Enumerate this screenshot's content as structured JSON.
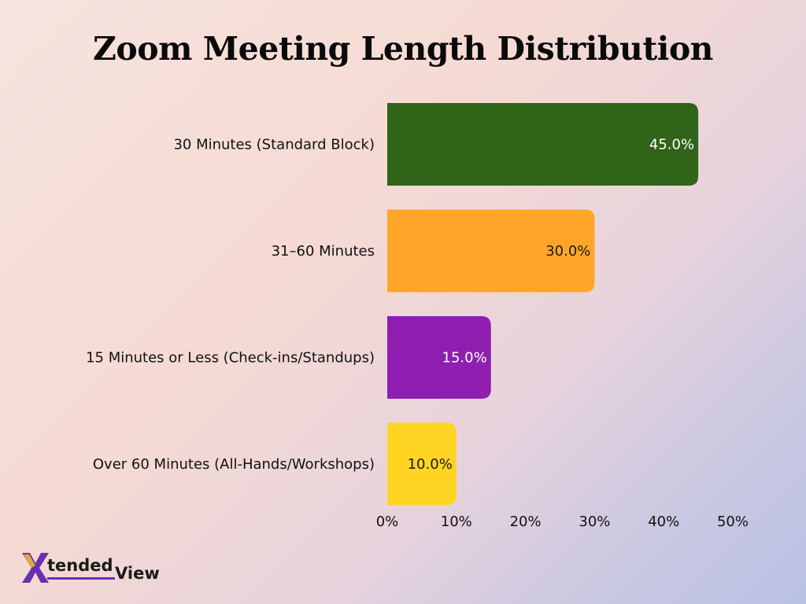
{
  "chart_data": {
    "type": "bar",
    "orientation": "horizontal",
    "title": "Zoom Meeting Length Distribution",
    "categories": [
      "30 Minutes (Standard Block)",
      "31–60 Minutes",
      "15 Minutes or Less (Check-ins/Standups)",
      "Over 60 Minutes (All-Hands/Workshops)"
    ],
    "values": [
      45.0,
      30.0,
      15.0,
      10.0
    ],
    "value_labels": [
      "45.0%",
      "30.0%",
      "15.0%",
      "10.0%"
    ],
    "colors": [
      "#2f6419",
      "#ffa629",
      "#8e1fb0",
      "#ffd422"
    ],
    "value_label_colors": [
      "#ffffff",
      "#1a1a1a",
      "#ffffff",
      "#1a1a1a"
    ],
    "xlim": [
      0,
      50
    ],
    "x_ticks": [
      0,
      10,
      20,
      30,
      40,
      50
    ],
    "x_tick_labels": [
      "0%",
      "10%",
      "20%",
      "30%",
      "40%",
      "50%"
    ],
    "xlabel": "",
    "ylabel": "",
    "grid": false,
    "legend": "none"
  },
  "logo": {
    "part1": "tended",
    "part2": "View",
    "accent_color": "#6a2fb0"
  }
}
